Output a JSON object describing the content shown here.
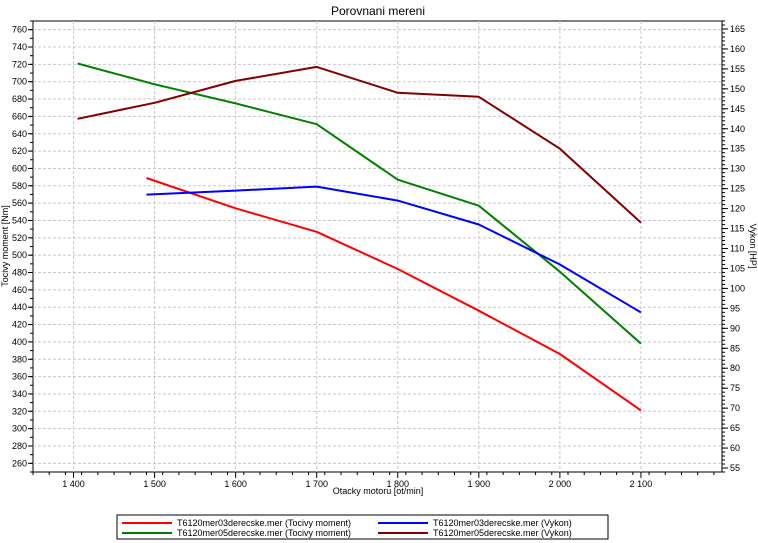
{
  "chart_data": {
    "type": "line",
    "title": "Porovnani mereni",
    "xlabel": "Otacky motoru [ot/min]",
    "ylabel_left": "Tocivy moment [Nm]",
    "ylabel_right": "Vykon [HP]",
    "xlim": [
      1350,
      2200
    ],
    "ylim_left": [
      250,
      770
    ],
    "ylim_right": [
      54,
      167
    ],
    "x_ticks": [
      1400,
      1500,
      1600,
      1700,
      1800,
      1900,
      2000,
      2100
    ],
    "x_tick_labels": [
      "1 400",
      "1 500",
      "1 600",
      "1 700",
      "1 800",
      "1 900",
      "2 000",
      "2 100"
    ],
    "y_left_ticks": [
      260,
      280,
      300,
      320,
      340,
      360,
      380,
      400,
      420,
      440,
      460,
      480,
      500,
      520,
      540,
      560,
      580,
      600,
      620,
      640,
      660,
      680,
      700,
      720,
      740,
      760
    ],
    "y_right_ticks": [
      55,
      60,
      65,
      70,
      75,
      80,
      85,
      90,
      95,
      100,
      105,
      110,
      115,
      120,
      125,
      130,
      135,
      140,
      145,
      150,
      155,
      160,
      165
    ],
    "grid": true,
    "legend_position": "bottom",
    "series": [
      {
        "name": "T6120mer03derecske.mer  (Tocivy moment)",
        "axis": "left",
        "color": "#ff0000",
        "x": [
          1490,
          1600,
          1700,
          1800,
          1900,
          2000,
          2100
        ],
        "y": [
          589,
          554,
          527,
          484,
          436,
          386,
          321
        ]
      },
      {
        "name": "T6120mer05derecske.mer  (Tocivy moment)",
        "axis": "left",
        "color": "#008000",
        "x": [
          1405,
          1500,
          1600,
          1700,
          1800,
          1900,
          2000,
          2100
        ],
        "y": [
          721,
          697,
          675,
          651,
          587,
          557,
          481,
          398
        ]
      },
      {
        "name": "T6120mer03derecske.mer  (Vykon)",
        "axis": "right",
        "color": "#0000ff",
        "x": [
          1490,
          1600,
          1700,
          1800,
          1900,
          2000,
          2100
        ],
        "y": [
          123.5,
          124.5,
          125.5,
          122,
          116,
          106,
          94
        ]
      },
      {
        "name": "T6120mer05derecske.mer  (Vykon)",
        "axis": "right",
        "color": "#800000",
        "x": [
          1405,
          1500,
          1600,
          1700,
          1800,
          1900,
          2000,
          2100
        ],
        "y": [
          142.5,
          146.5,
          152,
          155.5,
          149,
          148,
          135,
          116.5
        ]
      }
    ]
  }
}
